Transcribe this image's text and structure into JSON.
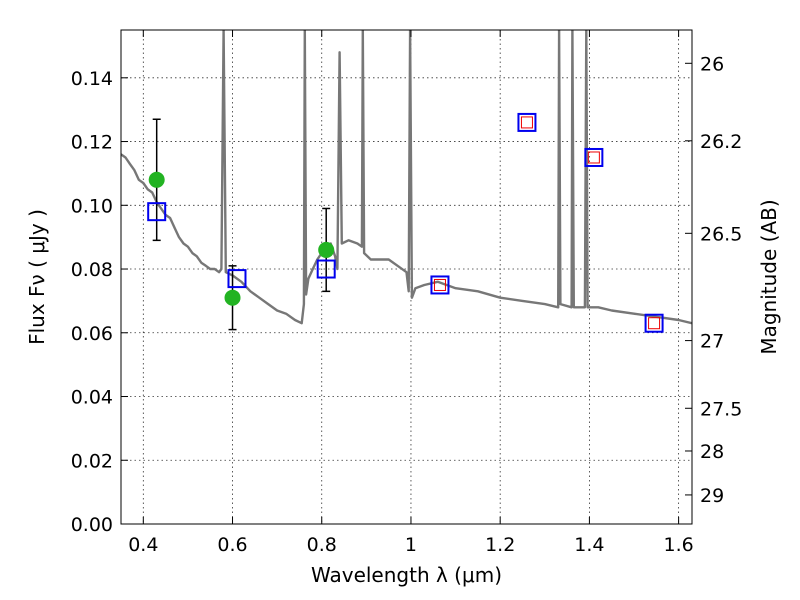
{
  "chart_data": {
    "type": "scatter",
    "title": "",
    "xlabel": "Wavelength  λ (μm)",
    "ylabel": "Flux  Fν  ( μJy )",
    "y2label": "Magnitude (AB)",
    "xlim": [
      0.35,
      1.63
    ],
    "ylim": [
      0.0,
      0.155
    ],
    "grid": true,
    "x_ticks": [
      0.4,
      0.6,
      0.8,
      1.0,
      1.2,
      1.4,
      1.6
    ],
    "x_tick_labels": [
      "0.4",
      "0.6",
      "0.8",
      "1",
      "1.2",
      "1.4",
      "1.6"
    ],
    "y_ticks": [
      0.0,
      0.02,
      0.04,
      0.06,
      0.08,
      0.1,
      0.12,
      0.14
    ],
    "y_tick_labels": [
      "0.00",
      "0.02",
      "0.04",
      "0.06",
      "0.08",
      "0.10",
      "0.12",
      "0.14"
    ],
    "mag_ticks": [
      26,
      26.2,
      26.5,
      27,
      27.5,
      28,
      29
    ],
    "mag_tick_labels": [
      "26",
      "26.2",
      "26.5",
      "27",
      "27.5",
      "28",
      "29"
    ],
    "series": [
      {
        "kind": "line",
        "color": "#777777",
        "points": [
          [
            0.35,
            0.116
          ],
          [
            0.36,
            0.115
          ],
          [
            0.37,
            0.113
          ],
          [
            0.38,
            0.111
          ],
          [
            0.39,
            0.108
          ],
          [
            0.4,
            0.107
          ],
          [
            0.41,
            0.105
          ],
          [
            0.42,
            0.104
          ],
          [
            0.43,
            0.101
          ],
          [
            0.44,
            0.099
          ],
          [
            0.45,
            0.097
          ],
          [
            0.46,
            0.096
          ],
          [
            0.47,
            0.093
          ],
          [
            0.48,
            0.09
          ],
          [
            0.49,
            0.088
          ],
          [
            0.5,
            0.087
          ],
          [
            0.51,
            0.085
          ],
          [
            0.52,
            0.084
          ],
          [
            0.53,
            0.082
          ],
          [
            0.54,
            0.081
          ],
          [
            0.55,
            0.08
          ],
          [
            0.56,
            0.08
          ],
          [
            0.57,
            0.079
          ],
          [
            0.575,
            0.08
          ],
          [
            0.58,
            0.155
          ],
          [
            0.585,
            0.079
          ],
          [
            0.6,
            0.078
          ],
          [
            0.62,
            0.076
          ],
          [
            0.64,
            0.073
          ],
          [
            0.66,
            0.071
          ],
          [
            0.68,
            0.069
          ],
          [
            0.7,
            0.067
          ],
          [
            0.72,
            0.066
          ],
          [
            0.74,
            0.064
          ],
          [
            0.755,
            0.063
          ],
          [
            0.76,
            0.069
          ],
          [
            0.762,
            0.155
          ],
          [
            0.765,
            0.072
          ],
          [
            0.77,
            0.077
          ],
          [
            0.78,
            0.08
          ],
          [
            0.79,
            0.083
          ],
          [
            0.8,
            0.085
          ],
          [
            0.81,
            0.087
          ],
          [
            0.82,
            0.088
          ],
          [
            0.83,
            0.084
          ],
          [
            0.835,
            0.08
          ],
          [
            0.84,
            0.148
          ],
          [
            0.845,
            0.088
          ],
          [
            0.86,
            0.089
          ],
          [
            0.88,
            0.088
          ],
          [
            0.89,
            0.087
          ],
          [
            0.892,
            0.155
          ],
          [
            0.895,
            0.085
          ],
          [
            0.91,
            0.083
          ],
          [
            0.93,
            0.083
          ],
          [
            0.95,
            0.083
          ],
          [
            0.97,
            0.081
          ],
          [
            0.99,
            0.079
          ],
          [
            0.995,
            0.073
          ],
          [
            0.998,
            0.155
          ],
          [
            1.002,
            0.071
          ],
          [
            1.01,
            0.074
          ],
          [
            1.03,
            0.075
          ],
          [
            1.06,
            0.076
          ],
          [
            1.1,
            0.074
          ],
          [
            1.15,
            0.073
          ],
          [
            1.2,
            0.071
          ],
          [
            1.25,
            0.07
          ],
          [
            1.3,
            0.069
          ],
          [
            1.33,
            0.068
          ],
          [
            1.332,
            0.155
          ],
          [
            1.335,
            0.069
          ],
          [
            1.36,
            0.068
          ],
          [
            1.362,
            0.155
          ],
          [
            1.365,
            0.068
          ],
          [
            1.39,
            0.068
          ],
          [
            1.393,
            0.155
          ],
          [
            1.396,
            0.068
          ],
          [
            1.42,
            0.068
          ],
          [
            1.45,
            0.067
          ],
          [
            1.5,
            0.066
          ],
          [
            1.55,
            0.065
          ],
          [
            1.6,
            0.064
          ],
          [
            1.63,
            0.063
          ]
        ]
      },
      {
        "kind": "observed-points",
        "color": "#22b322",
        "points": [
          {
            "x": 0.43,
            "y": 0.108,
            "err": 0.019
          },
          {
            "x": 0.6,
            "y": 0.071,
            "err": 0.01
          },
          {
            "x": 0.81,
            "y": 0.086,
            "err": 0.013
          }
        ]
      },
      {
        "kind": "model-squares",
        "color": "#0000ee",
        "points": [
          {
            "x": 0.43,
            "y": 0.098
          },
          {
            "x": 0.61,
            "y": 0.077
          },
          {
            "x": 0.81,
            "y": 0.08
          },
          {
            "x": 1.065,
            "y": 0.075
          },
          {
            "x": 1.26,
            "y": 0.126
          },
          {
            "x": 1.41,
            "y": 0.115
          },
          {
            "x": 1.545,
            "y": 0.063
          }
        ]
      },
      {
        "kind": "model-squares-inner",
        "color": "#ee0000",
        "points": [
          {
            "x": 1.065,
            "y": 0.075
          },
          {
            "x": 1.26,
            "y": 0.126
          },
          {
            "x": 1.41,
            "y": 0.115
          },
          {
            "x": 1.545,
            "y": 0.063
          }
        ]
      }
    ]
  }
}
